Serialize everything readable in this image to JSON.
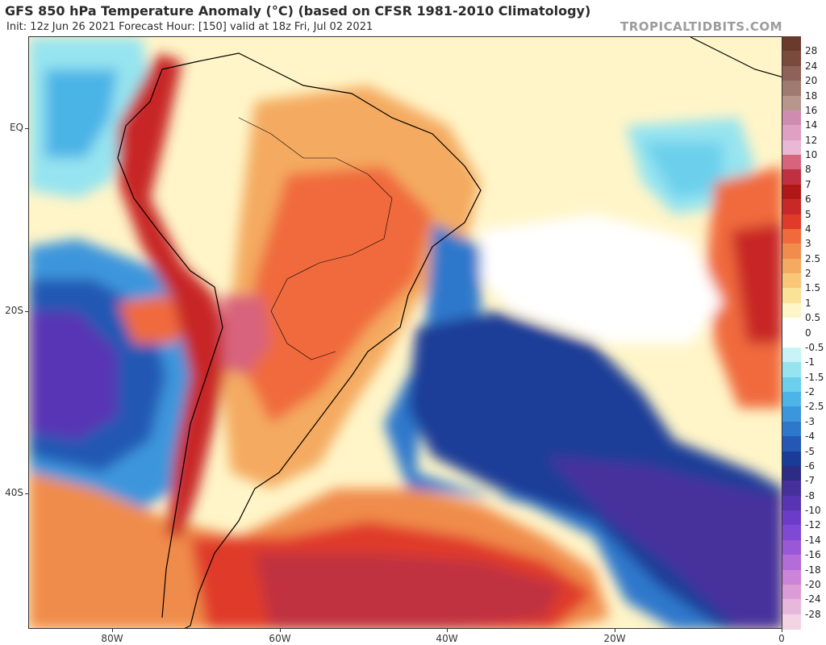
{
  "header": {
    "title": "GFS 850 hPa Temperature Anomaly (°C) (based on CFSR 1981-2010 Climatology)",
    "subtitle": "Init: 12z Jun 26 2021   Forecast Hour: [150]   valid at 18z Fri, Jul 02 2021",
    "brand": "TROPICALTIDBITS.COM"
  },
  "axes": {
    "latitude_labels": [
      "EQ",
      "20S",
      "40S"
    ],
    "longitude_labels": [
      "80W",
      "60W",
      "40W",
      "20W",
      "0"
    ]
  },
  "legend": {
    "labels": [
      "28",
      "24",
      "20",
      "18",
      "16",
      "14",
      "12",
      "10",
      "8",
      "7",
      "6",
      "5",
      "4",
      "3",
      "2.5",
      "2",
      "1.5",
      "1",
      "0.5",
      "0",
      "-0.5",
      "-1",
      "-1.5",
      "-2",
      "-2.5",
      "-3",
      "-4",
      "-5",
      "-6",
      "-7",
      "-8",
      "-10",
      "-12",
      "-14",
      "-16",
      "-18",
      "-20",
      "-24",
      "-28"
    ],
    "colors": [
      "#7a4a3c",
      "#8e6258",
      "#a07a70",
      "#b8968c",
      "#d08cb0",
      "#e0a0c4",
      "#e8b8d4",
      "#d8647c",
      "#c03040",
      "#b01818",
      "#c82828",
      "#e03a2a",
      "#f06a3c",
      "#f08c4c",
      "#f4aa60",
      "#f8c878",
      "#fce298",
      "#fff5c8",
      "#ffffff",
      "#ffffff",
      "#c8f4f8",
      "#96e4f0",
      "#6cd0ec",
      "#4cb4e6",
      "#3c96dc",
      "#2e78cc",
      "#2458b4",
      "#1a3c98",
      "#2c2c84",
      "#46309c",
      "#5834b4",
      "#6c3cc8",
      "#8048d4",
      "#9a58d8",
      "#b46cd8",
      "#cc84d8",
      "#dc9cd8",
      "#e8b8dc",
      "#f2d4e4"
    ]
  }
}
